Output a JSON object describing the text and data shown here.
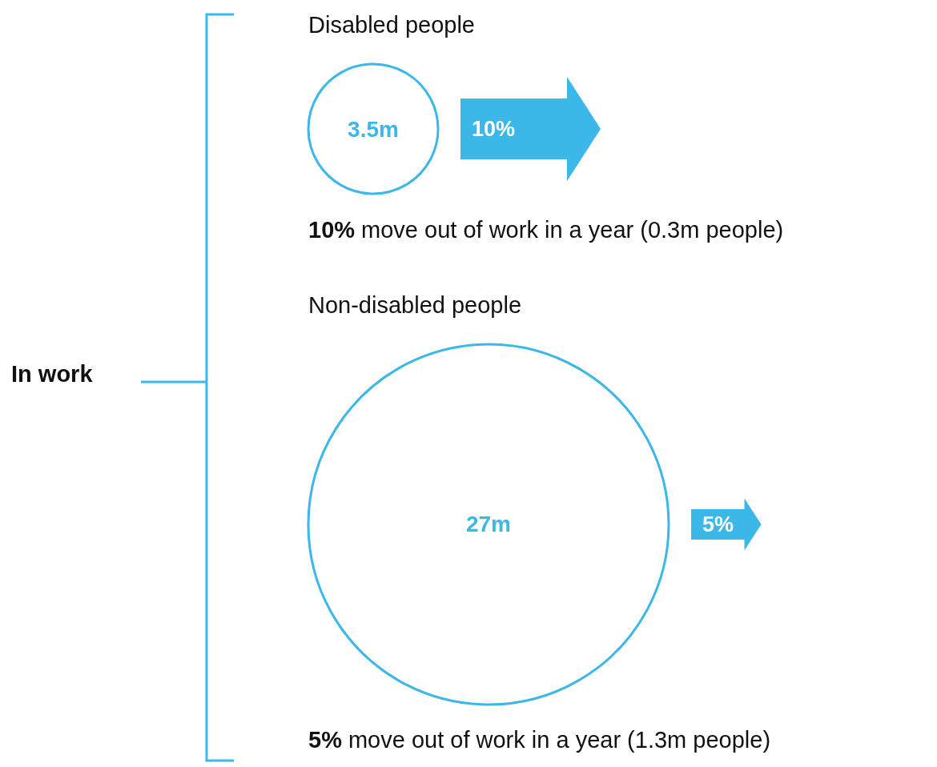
{
  "chart_data": {
    "type": "other",
    "ylabel": "In work",
    "categories": [
      "Disabled people",
      "Non-disabled people"
    ],
    "series": [
      {
        "values": [
          3.5,
          27
        ],
        "value_labels": [
          "3.5m",
          "27m"
        ],
        "color": "#3bb8e8"
      },
      {
        "values": [
          10,
          5
        ],
        "value_labels": [
          "10%",
          "5%"
        ],
        "color": "#3bb8e8"
      }
    ],
    "annotations": [
      "10% move out of work in a year (0.3m people)",
      "5% move out of work in a year (1.3m people)"
    ]
  }
}
